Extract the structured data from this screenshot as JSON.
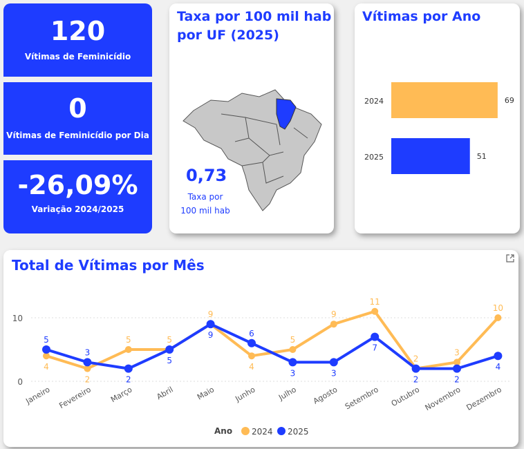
{
  "kpis": [
    {
      "value": "120",
      "label": "Vítimas de Feminicídio"
    },
    {
      "value": "0",
      "label": "Vítimas de Feminicídio por Dia"
    },
    {
      "value": "-26,09%",
      "label": "Variação 2024/2025"
    }
  ],
  "map_card": {
    "title_line1": "Taxa por 100 mil hab",
    "title_line2": "por UF (2025)",
    "value": "0,73",
    "label_line1": "Taxa por",
    "label_line2": "100 mil hab",
    "highlight_color": "#1e3cff"
  },
  "bar_card": {
    "title": "Vítimas por Ano"
  },
  "line_card": {
    "title": "Total de Vítimas por Mês",
    "expand_icon": "expand-icon"
  },
  "colors": {
    "2024": "#ffbb55",
    "2025": "#1e3cff"
  },
  "chart_data": [
    {
      "type": "bar",
      "title": "Vítimas por Ano",
      "categories": [
        "2024",
        "2025"
      ],
      "values": [
        69,
        51
      ],
      "colors": [
        "#ffbb55",
        "#1e3cff"
      ]
    },
    {
      "type": "line",
      "title": "Total de Vítimas por Mês",
      "x": [
        "Janeiro",
        "Fevereiro",
        "Março",
        "Abril",
        "Maio",
        "Junho",
        "Julho",
        "Agosto",
        "Setembro",
        "Outubro",
        "Novembro",
        "Dezembro"
      ],
      "yticks": [
        0,
        10
      ],
      "ylim": [
        0,
        12
      ],
      "legend_title": "Ano",
      "legend_position": "bottom",
      "series": [
        {
          "name": "2024",
          "values": [
            4,
            2,
            5,
            5,
            9,
            4,
            5,
            9,
            11,
            2,
            3,
            10
          ],
          "color": "#ffbb55"
        },
        {
          "name": "2025",
          "values": [
            5,
            3,
            2,
            5,
            9,
            6,
            3,
            3,
            7,
            2,
            2,
            4
          ],
          "color": "#1e3cff"
        }
      ]
    }
  ]
}
